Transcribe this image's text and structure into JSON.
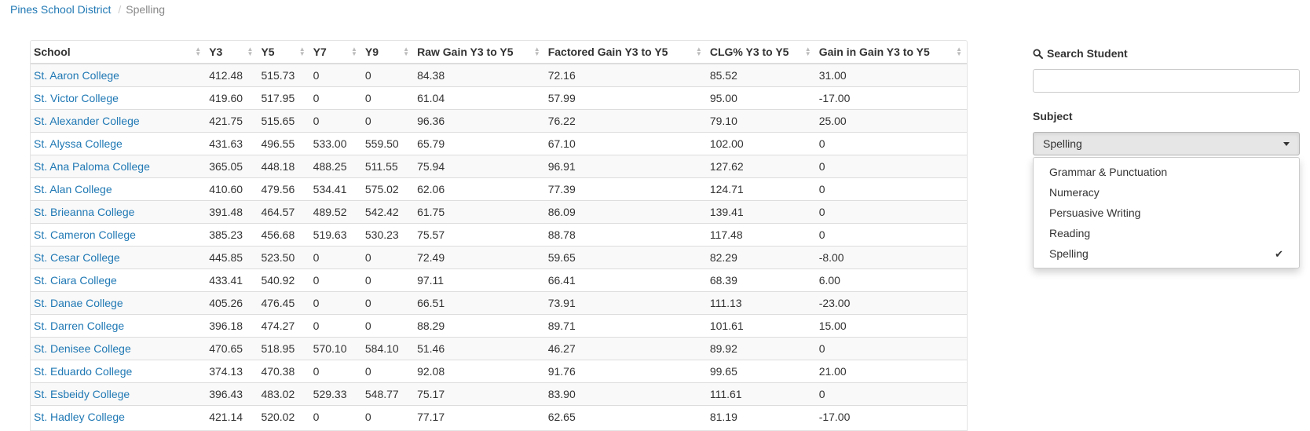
{
  "breadcrumb": {
    "home": "Pines School District",
    "current": "Spelling"
  },
  "table": {
    "headers": [
      "School",
      "Y3",
      "Y5",
      "Y7",
      "Y9",
      "Raw Gain Y3 to Y5",
      "Factored Gain Y3 to Y5",
      "CLG% Y3 to Y5",
      "Gain in Gain Y3 to Y5"
    ],
    "rows": [
      [
        "St. Aaron College",
        "412.48",
        "515.73",
        "0",
        "0",
        "84.38",
        "72.16",
        "85.52",
        "31.00"
      ],
      [
        "St. Victor College",
        "419.60",
        "517.95",
        "0",
        "0",
        "61.04",
        "57.99",
        "95.00",
        "-17.00"
      ],
      [
        "St. Alexander College",
        "421.75",
        "515.65",
        "0",
        "0",
        "96.36",
        "76.22",
        "79.10",
        "25.00"
      ],
      [
        "St. Alyssa College",
        "431.63",
        "496.55",
        "533.00",
        "559.50",
        "65.79",
        "67.10",
        "102.00",
        "0"
      ],
      [
        "St. Ana Paloma College",
        "365.05",
        "448.18",
        "488.25",
        "511.55",
        "75.94",
        "96.91",
        "127.62",
        "0"
      ],
      [
        "St. Alan College",
        "410.60",
        "479.56",
        "534.41",
        "575.02",
        "62.06",
        "77.39",
        "124.71",
        "0"
      ],
      [
        "St. Brieanna College",
        "391.48",
        "464.57",
        "489.52",
        "542.42",
        "61.75",
        "86.09",
        "139.41",
        "0"
      ],
      [
        "St. Cameron College",
        "385.23",
        "456.68",
        "519.63",
        "530.23",
        "75.57",
        "88.78",
        "117.48",
        "0"
      ],
      [
        "St. Cesar College",
        "445.85",
        "523.50",
        "0",
        "0",
        "72.49",
        "59.65",
        "82.29",
        "-8.00"
      ],
      [
        "St. Ciara College",
        "433.41",
        "540.92",
        "0",
        "0",
        "97.11",
        "66.41",
        "68.39",
        "6.00"
      ],
      [
        "St. Danae College",
        "405.26",
        "476.45",
        "0",
        "0",
        "66.51",
        "73.91",
        "111.13",
        "-23.00"
      ],
      [
        "St. Darren College",
        "396.18",
        "474.27",
        "0",
        "0",
        "88.29",
        "89.71",
        "101.61",
        "15.00"
      ],
      [
        "St. Denisee College",
        "470.65",
        "518.95",
        "570.10",
        "584.10",
        "51.46",
        "46.27",
        "89.92",
        "0"
      ],
      [
        "St. Eduardo College",
        "374.13",
        "470.38",
        "0",
        "0",
        "92.08",
        "91.76",
        "99.65",
        "21.00"
      ],
      [
        "St. Esbeidy College",
        "396.43",
        "483.02",
        "529.33",
        "548.77",
        "75.17",
        "83.90",
        "111.61",
        "0"
      ],
      [
        "St. Hadley College",
        "421.14",
        "520.02",
        "0",
        "0",
        "77.17",
        "62.65",
        "81.19",
        "-17.00"
      ]
    ]
  },
  "sidebar": {
    "search_label": "Search Student",
    "search_value": "",
    "subject_label": "Subject",
    "subject_selected": "Spelling",
    "subject_options": [
      "Grammar & Punctuation",
      "Numeracy",
      "Persuasive Writing",
      "Reading",
      "Spelling"
    ]
  },
  "colors": {
    "link": "#1f78b4",
    "stripe": "#f9f9f9"
  }
}
